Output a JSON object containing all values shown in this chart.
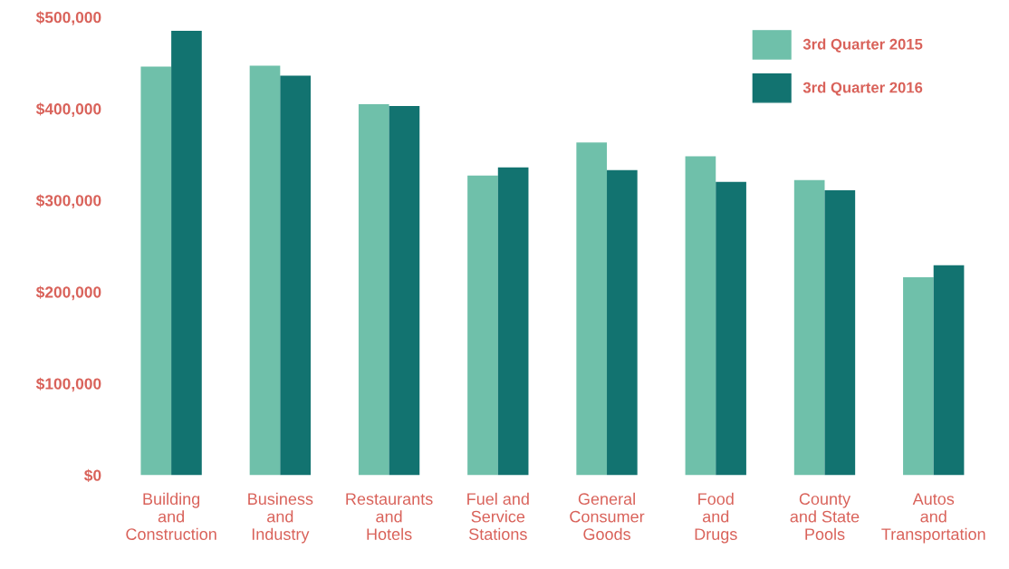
{
  "chart_data": {
    "type": "bar",
    "categories": [
      "Building\nand\nConstruction",
      "Business\nand\nIndustry",
      "Restaurants\nand\nHotels",
      "Fuel and\nService\nStations",
      "General\nConsumer\nGoods",
      "Food\nand\nDrugs",
      "County\nand State\nPools",
      "Autos\nand\nTransportation"
    ],
    "series": [
      {
        "name": "3rd Quarter 2015",
        "color": "#6fc0aa",
        "values": [
          446000,
          447000,
          405000,
          327000,
          363000,
          348000,
          322000,
          216000
        ]
      },
      {
        "name": "3rd Quarter 2016",
        "color": "#127370",
        "values": [
          485000,
          436000,
          403000,
          336000,
          333000,
          320000,
          311000,
          229000
        ]
      }
    ],
    "ylim": [
      0,
      500000
    ],
    "yticks": [
      {
        "value": 0,
        "label": "$0"
      },
      {
        "value": 100000,
        "label": "$100,000"
      },
      {
        "value": 200000,
        "label": "$200,000"
      },
      {
        "value": 300000,
        "label": "$300,000"
      },
      {
        "value": 400000,
        "label": "$400,000"
      },
      {
        "value": 500000,
        "label": "$500,000"
      }
    ],
    "grid": false,
    "legend": "top right"
  }
}
